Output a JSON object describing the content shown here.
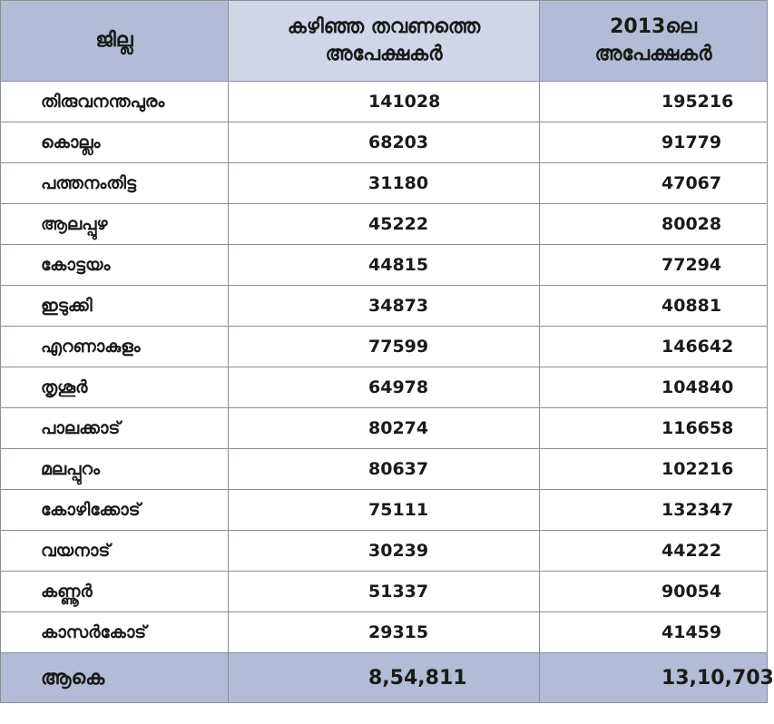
{
  "header": {
    "col1": "ജില്ല",
    "col2_line1": "കഴിഞ്ഞ തവണത്തെ",
    "col2_line2": "അപേക്ഷകർ",
    "col3_line1": "2013ലെ",
    "col3_line2": "അപേക്ഷകർ"
  },
  "rows": [
    {
      "district": "തിരുവനന്തപുരം",
      "previous": "141028",
      "y2013": "195216"
    },
    {
      "district": "കൊല്ലം",
      "previous": "68203",
      "y2013": "91779"
    },
    {
      "district": "പത്തനംതിട്ട",
      "previous": "31180",
      "y2013": "47067"
    },
    {
      "district": "ആലപ്പുഴ",
      "previous": "45222",
      "y2013": "80028"
    },
    {
      "district": "കോട്ടയം",
      "previous": "44815",
      "y2013": "77294"
    },
    {
      "district": "ഇടുക്കി",
      "previous": "34873",
      "y2013": "40881"
    },
    {
      "district": "എറണാകുളം",
      "previous": "77599",
      "y2013": "146642"
    },
    {
      "district": "തൃശൂർ",
      "previous": "64978",
      "y2013": "104840"
    },
    {
      "district": "പാലക്കാട്",
      "previous": "80274",
      "y2013": "116658"
    },
    {
      "district": "മലപ്പുറം",
      "previous": "80637",
      "y2013": "102216"
    },
    {
      "district": "കോഴിക്കോട്",
      "previous": "75111",
      "y2013": "132347"
    },
    {
      "district": "വയനാട്",
      "previous": "30239",
      "y2013": "44222"
    },
    {
      "district": "കണ്ണൂർ",
      "previous": "51337",
      "y2013": "90054"
    },
    {
      "district": "കാസർകോട്",
      "previous": "29315",
      "y2013": "41459"
    }
  ],
  "total": {
    "label": "ആകെ",
    "previous": "8,54,811",
    "y2013": "13,10,703"
  },
  "colors": {
    "header_dark": "#b3bcd6",
    "header_light": "#d0d6e8",
    "border": "#8b8f99"
  }
}
